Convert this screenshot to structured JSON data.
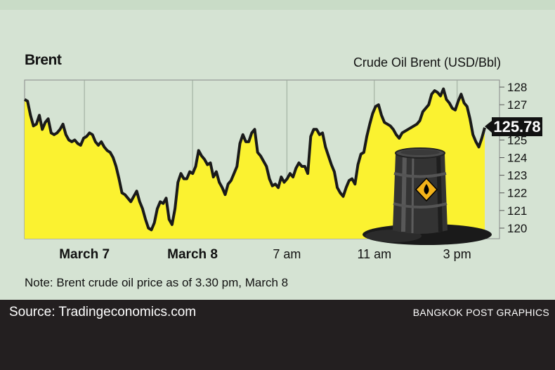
{
  "chart_data": {
    "type": "area",
    "title": "Brent",
    "subtitle": "Crude Oil Brent (USD/Bbl)",
    "ylim": [
      119.4,
      128.4
    ],
    "y_ticks": [
      120,
      121,
      122,
      123,
      124,
      125,
      126,
      127,
      128
    ],
    "x_ticks": [
      {
        "label": "March 7",
        "at": 0.13,
        "bold": true
      },
      {
        "label": "March 8",
        "at": 0.365,
        "bold": true
      },
      {
        "label": "7 am",
        "at": 0.57,
        "bold": false
      },
      {
        "label": "11 am",
        "at": 0.76,
        "bold": false
      },
      {
        "label": "3 pm",
        "at": 0.94,
        "bold": false
      }
    ],
    "last_value": "125.78",
    "series": [
      {
        "values": [
          127.3,
          127.2,
          126.4,
          125.8,
          125.9,
          126.4,
          125.6,
          126.0,
          126.2,
          125.4,
          125.3,
          125.4,
          125.6,
          125.9,
          125.3,
          125.0,
          124.9,
          125.0,
          124.8,
          124.7,
          125.1,
          125.2,
          125.4,
          125.3,
          124.9,
          124.7,
          124.9,
          124.6,
          124.4,
          124.3,
          124.0,
          123.5,
          122.8,
          122.0,
          121.9,
          121.7,
          121.5,
          121.8,
          122.1,
          121.5,
          121.1,
          120.5,
          120.0,
          119.9,
          120.3,
          121.1,
          121.5,
          121.4,
          121.7,
          120.5,
          120.2,
          121.1,
          122.6,
          123.1,
          122.8,
          122.8,
          123.2,
          123.1,
          123.5,
          124.4,
          124.1,
          123.9,
          123.6,
          123.7,
          122.9,
          123.2,
          122.6,
          122.3,
          121.9,
          122.5,
          122.7,
          123.1,
          123.5,
          124.8,
          125.3,
          124.9,
          124.9,
          125.4,
          125.6,
          124.3,
          124.1,
          123.8,
          123.5,
          122.8,
          122.4,
          122.5,
          122.3,
          122.9,
          122.6,
          122.8,
          123.1,
          122.9,
          123.4,
          123.7,
          123.5,
          123.5,
          123.1,
          125.2,
          125.6,
          125.6,
          125.3,
          125.4,
          124.6,
          124.1,
          123.6,
          123.2,
          122.3,
          122.0,
          121.8,
          122.3,
          122.7,
          122.8,
          122.5,
          123.6,
          124.2,
          124.3,
          125.2,
          125.9,
          126.5,
          126.9,
          127.0,
          126.4,
          126.0,
          125.9,
          125.8,
          125.6,
          125.3,
          125.1,
          125.4,
          125.5,
          125.6,
          125.7,
          125.8,
          125.9,
          126.1,
          126.6,
          126.8,
          127.0,
          127.6,
          127.8,
          127.7,
          127.5,
          127.9,
          127.3,
          127.1,
          126.8,
          126.7,
          127.2,
          127.6,
          127.1,
          126.9,
          126.2,
          125.3,
          124.9,
          124.6,
          125.1,
          125.7
        ]
      }
    ],
    "note": "Note: Brent crude oil price as of 3.30 pm, March 8"
  },
  "footer": {
    "source": "Source: Tradingeconomics.com",
    "credit": "BANGKOK POST GRAPHICS"
  },
  "colors": {
    "background": "#d5e3d3",
    "area_fill": "#fbf230",
    "line": "#1a1a1a",
    "footer": "#231f20",
    "value_box": "#111111"
  }
}
